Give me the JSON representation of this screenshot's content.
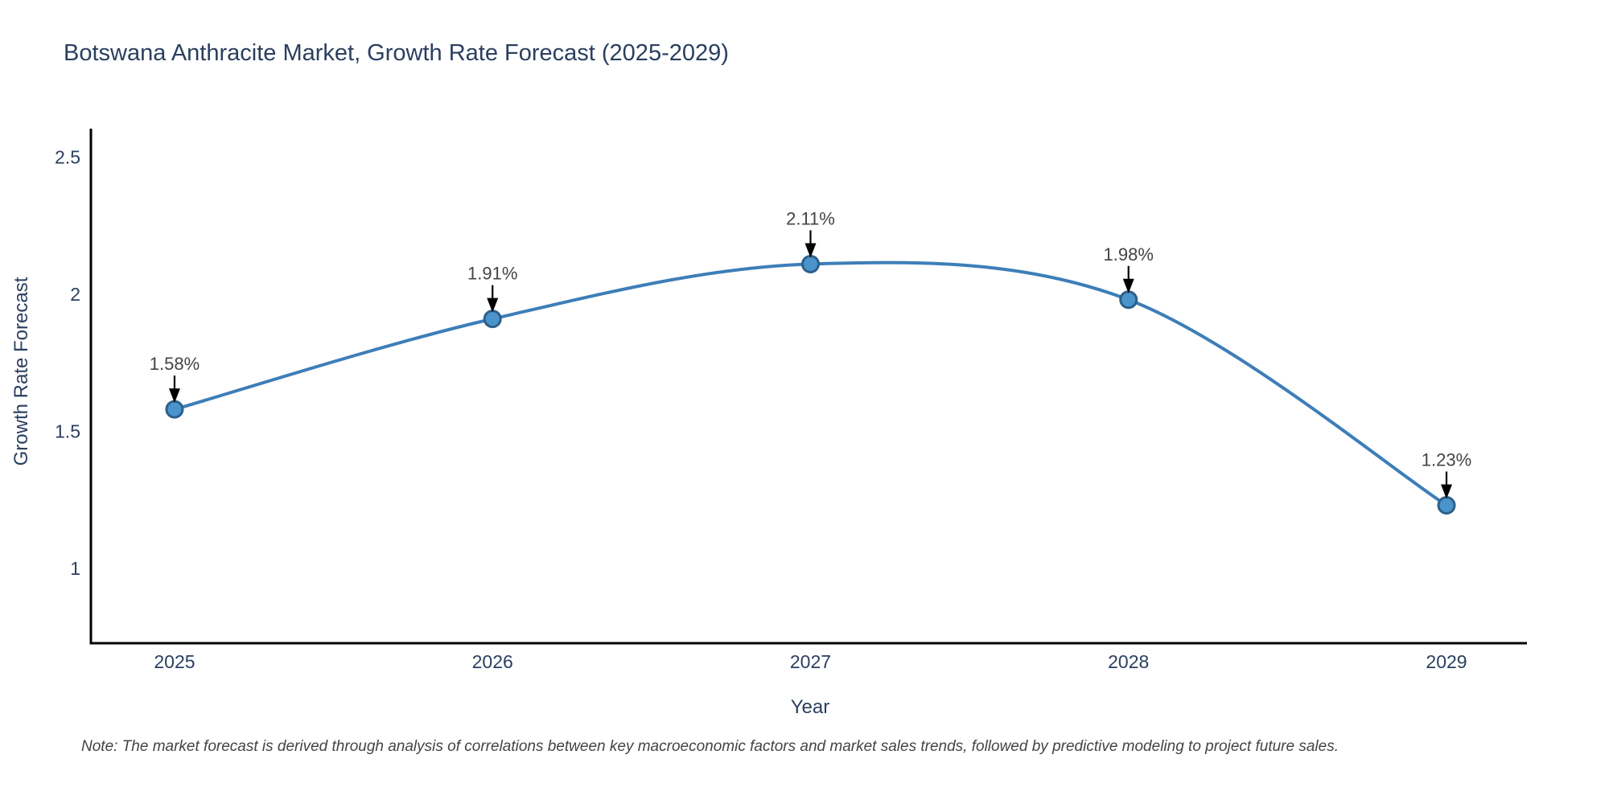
{
  "chart_data": {
    "type": "line",
    "title": "Botswana Anthracite Market, Growth Rate Forecast (2025-2029)",
    "xlabel": "Year",
    "ylabel": "Growth Rate Forecast",
    "note": "Note: The market forecast is derived through analysis of correlations between key macroeconomic factors and market sales trends, followed by predictive modeling to project future sales.",
    "x": [
      2025,
      2026,
      2027,
      2028,
      2029
    ],
    "y": [
      1.58,
      1.91,
      2.11,
      1.98,
      1.23
    ],
    "point_labels": [
      "1.58%",
      "1.91%",
      "2.11%",
      "1.98%",
      "1.23%"
    ],
    "x_tick_labels": [
      "2025",
      "2026",
      "2027",
      "2028",
      "2029"
    ],
    "y_ticks": [
      1,
      1.5,
      2,
      2.5
    ],
    "y_tick_labels": [
      "1",
      "1.5",
      "2",
      "2.5"
    ],
    "xlim": [
      2024.737,
      2029.253
    ],
    "ylim": [
      0.727,
      2.604
    ],
    "line_shape": "spline",
    "grid": false,
    "legend": "none",
    "colors": {
      "line": "#3d7eb8",
      "marker_fill": "#4a94cb",
      "marker_edge": "#2d5f8a",
      "axis_line": "#000000",
      "title_text": "#2a3f5f",
      "tick_text": "#2a3f5f",
      "annotation_text": "#444444",
      "arrow": "#000000",
      "note_text": "#444444",
      "background": "#ffffff"
    }
  }
}
